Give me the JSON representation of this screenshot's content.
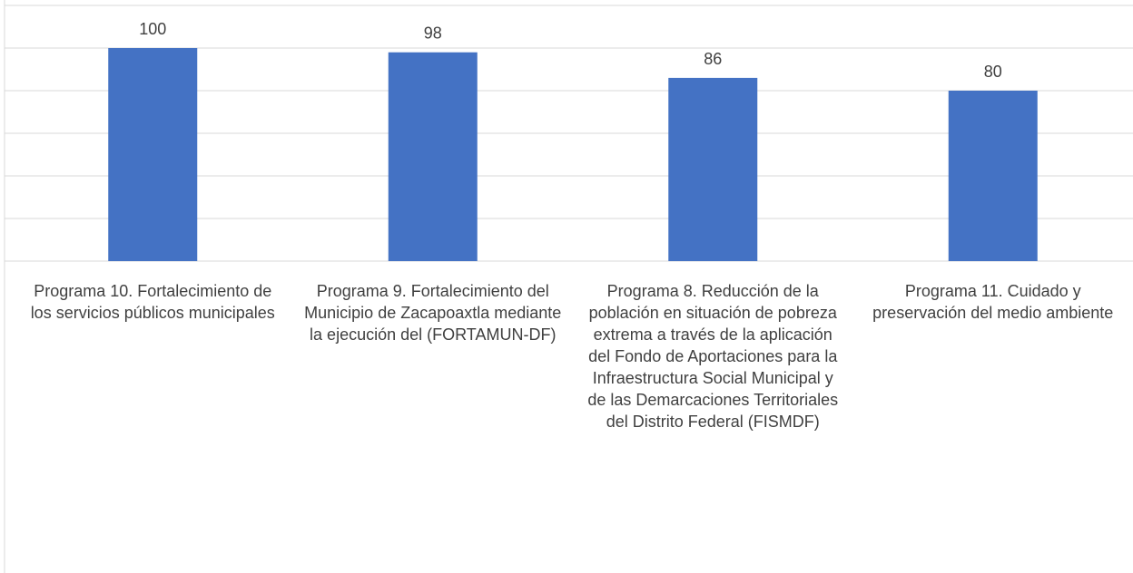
{
  "chart_data": {
    "type": "bar",
    "categories": [
      "Programa 10. Fortalecimiento de los servicios públicos municipales",
      "Programa 9. Fortalecimiento del Municipio de Zacapoaxtla mediante la ejecución del (FORTAMUN-DF)",
      "Programa 8. Reducción de la población en situación de pobreza extrema a través de la aplicación del Fondo de Aportaciones para la Infraestructura  Social Municipal y de las Demarcaciones Territoriales del Distrito Federal (FISMDF)",
      "Programa 11. Cuidado y preservación del medio ambiente"
    ],
    "values": [
      100,
      98,
      86,
      80
    ],
    "color": "#4472c4",
    "ylim": [
      0,
      120
    ],
    "yticks": [
      0,
      20,
      40,
      60,
      80,
      100,
      120
    ],
    "grid": true
  }
}
